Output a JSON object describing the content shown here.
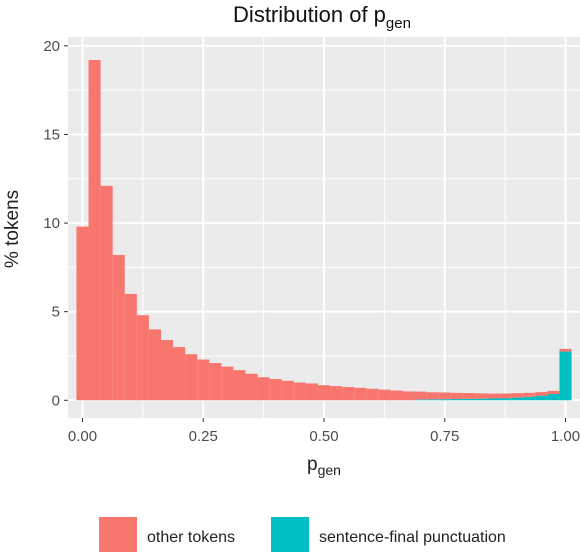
{
  "chart_data": {
    "type": "bar",
    "subtype": "stacked-histogram",
    "title": {
      "main": "Distribution of p",
      "sub": "gen"
    },
    "xlabel": {
      "main": "p",
      "sub": "gen"
    },
    "ylabel": "% tokens",
    "xlim": [
      -0.03,
      1.03
    ],
    "ylim": [
      -1,
      20.5
    ],
    "x_ticks": [
      {
        "value": 0,
        "label": "0.00"
      },
      {
        "value": 0.25,
        "label": "0.25"
      },
      {
        "value": 0.5,
        "label": "0.50"
      },
      {
        "value": 0.75,
        "label": "0.75"
      },
      {
        "value": 1,
        "label": "1.00"
      }
    ],
    "y_ticks": [
      {
        "value": 0,
        "label": "0"
      },
      {
        "value": 5,
        "label": "5"
      },
      {
        "value": 10,
        "label": "10"
      },
      {
        "value": 15,
        "label": "15"
      },
      {
        "value": 20,
        "label": "20"
      }
    ],
    "binwidth": 0.025,
    "x": [
      0.0,
      0.025,
      0.05,
      0.075,
      0.1,
      0.125,
      0.15,
      0.175,
      0.2,
      0.225,
      0.25,
      0.275,
      0.3,
      0.325,
      0.35,
      0.375,
      0.4,
      0.425,
      0.45,
      0.475,
      0.5,
      0.525,
      0.55,
      0.575,
      0.6,
      0.625,
      0.65,
      0.675,
      0.7,
      0.725,
      0.75,
      0.775,
      0.8,
      0.825,
      0.85,
      0.875,
      0.9,
      0.925,
      0.95,
      0.975,
      1.0
    ],
    "series": [
      {
        "name": "other tokens",
        "color": "#F8766D",
        "values": [
          9.8,
          19.2,
          12.1,
          8.2,
          6.0,
          4.8,
          4.0,
          3.4,
          3.0,
          2.6,
          2.3,
          2.1,
          1.9,
          1.7,
          1.5,
          1.3,
          1.2,
          1.1,
          1.0,
          0.95,
          0.85,
          0.8,
          0.75,
          0.7,
          0.65,
          0.6,
          0.55,
          0.5,
          0.45,
          0.4,
          0.38,
          0.35,
          0.33,
          0.3,
          0.28,
          0.26,
          0.25,
          0.22,
          0.2,
          0.18,
          0.15
        ]
      },
      {
        "name": "sentence-final punctuation",
        "color": "#00BFC4",
        "values": [
          0,
          0,
          0,
          0,
          0,
          0,
          0,
          0,
          0,
          0,
          0,
          0,
          0,
          0,
          0,
          0,
          0,
          0,
          0,
          0,
          0,
          0,
          0,
          0,
          0,
          0,
          0,
          0,
          0.04,
          0.05,
          0.06,
          0.07,
          0.08,
          0.09,
          0.1,
          0.12,
          0.15,
          0.2,
          0.26,
          0.35,
          2.75
        ]
      }
    ],
    "legend_position": "bottom",
    "panel_background": "#EBEBEB",
    "grid_color": "#FFFFFF",
    "grid": true
  }
}
